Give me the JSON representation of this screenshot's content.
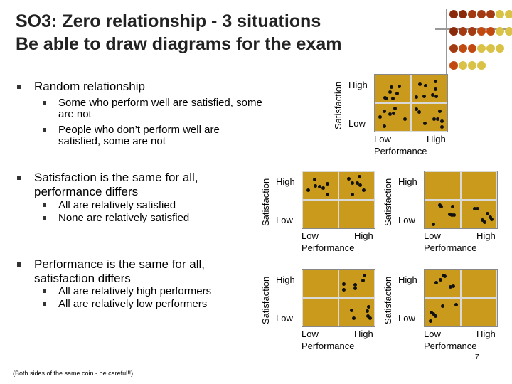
{
  "title": {
    "line1": "SO3: Zero relationship - 3 situations",
    "line2": "Be able to draw diagrams for the exam"
  },
  "decoration": {
    "colors": [
      "#8b2a0a",
      "#a33a12",
      "#c24a10",
      "#d9c246"
    ]
  },
  "bullets": [
    {
      "text": "Random relationship",
      "subs": [
        "Some who perform well are satisfied, some are not",
        "People who don’t perform well are satisfied, some are not"
      ]
    },
    {
      "text": "Satisfaction is the same for all, performance differs",
      "subs": [
        "All are relatively satisfied",
        "None are relatively satisfied"
      ]
    },
    {
      "text": "Performance is the same for all, satisfaction differs",
      "subs": [
        "All are relatively high performers",
        "All are relatively low performers"
      ]
    }
  ],
  "diagram_labels": {
    "y_axis": "Satisfaction",
    "x_axis": "Performance",
    "high": "High",
    "low": "Low"
  },
  "diagrams": [
    {
      "id": "random",
      "pattern": "random",
      "panel_color": "#c99a1b",
      "dot_color": "#111111"
    },
    {
      "id": "all-satisfied",
      "pattern": "top-row",
      "panel_color": "#c99a1b",
      "dot_color": "#111111"
    },
    {
      "id": "none-satisfied",
      "pattern": "bottom-row",
      "panel_color": "#c99a1b",
      "dot_color": "#111111"
    },
    {
      "id": "high-performers",
      "pattern": "right-column",
      "panel_color": "#c99a1b",
      "dot_color": "#111111"
    },
    {
      "id": "low-performers",
      "pattern": "left-column",
      "panel_color": "#c99a1b",
      "dot_color": "#111111"
    }
  ],
  "footer": "(Both sides of the same coin - be careful!!)",
  "page_number": "7"
}
